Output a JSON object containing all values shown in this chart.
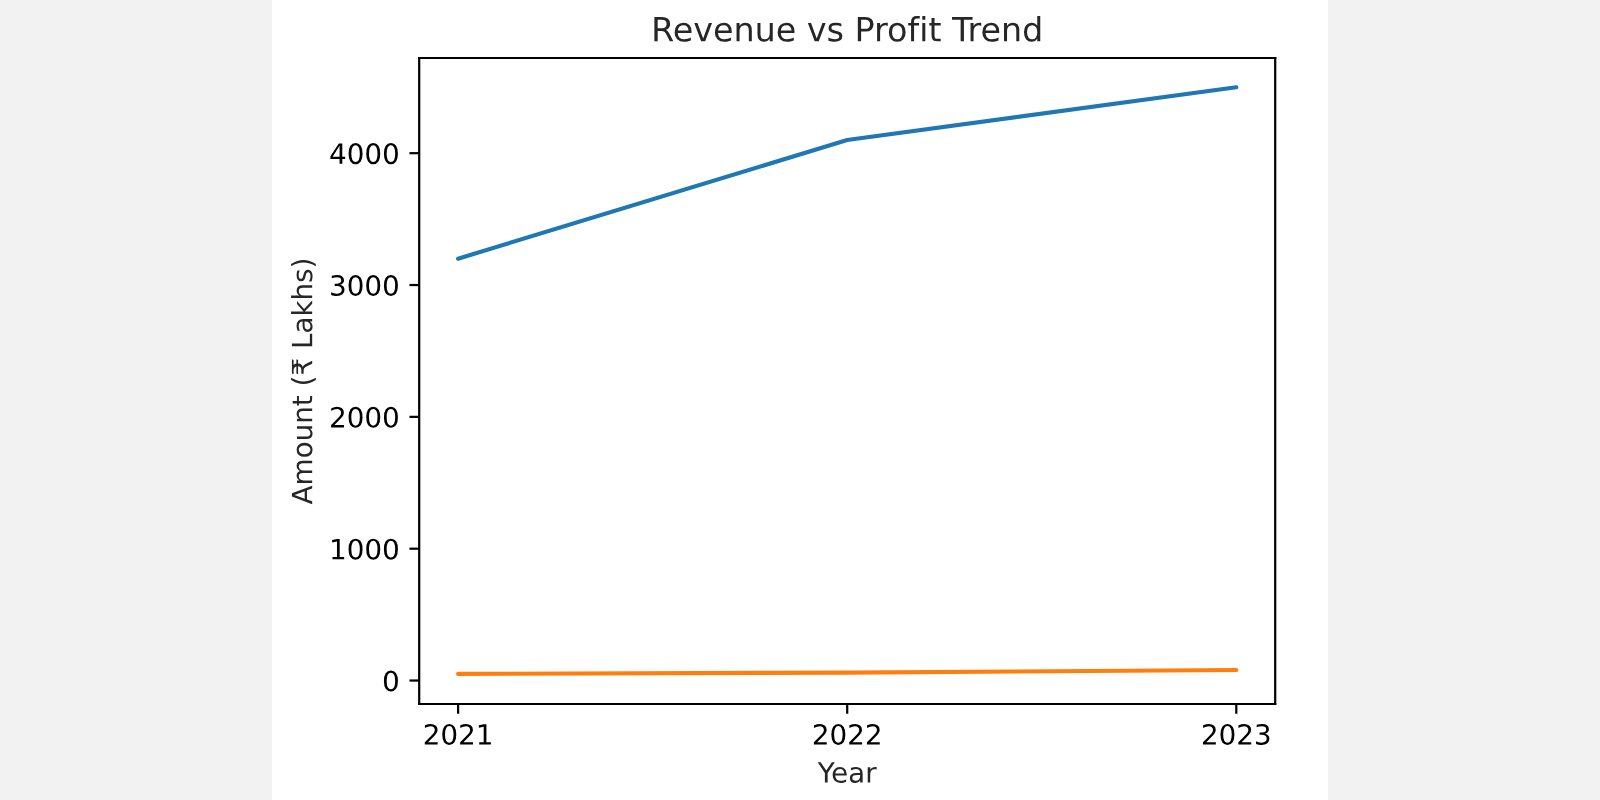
{
  "chart_data": {
    "type": "line",
    "title": "Revenue vs Profit Trend",
    "xlabel": "Year",
    "ylabel": "Amount (₹ Lakhs)",
    "x": [
      2021,
      2022,
      2023
    ],
    "series": [
      {
        "color": "#1f77b4",
        "values": [
          3200,
          4100,
          4500
        ]
      },
      {
        "color": "#ff7f0e",
        "values": [
          50,
          60,
          80
        ]
      }
    ],
    "xlim": [
      2020.9,
      2023.1
    ],
    "xticks": [
      2021,
      2022,
      2023
    ],
    "ylim": [
      -178,
      4722
    ],
    "yticks": [
      0,
      1000,
      2000,
      3000,
      4000
    ],
    "grid": false,
    "marker": "none",
    "line_style": "solid"
  }
}
